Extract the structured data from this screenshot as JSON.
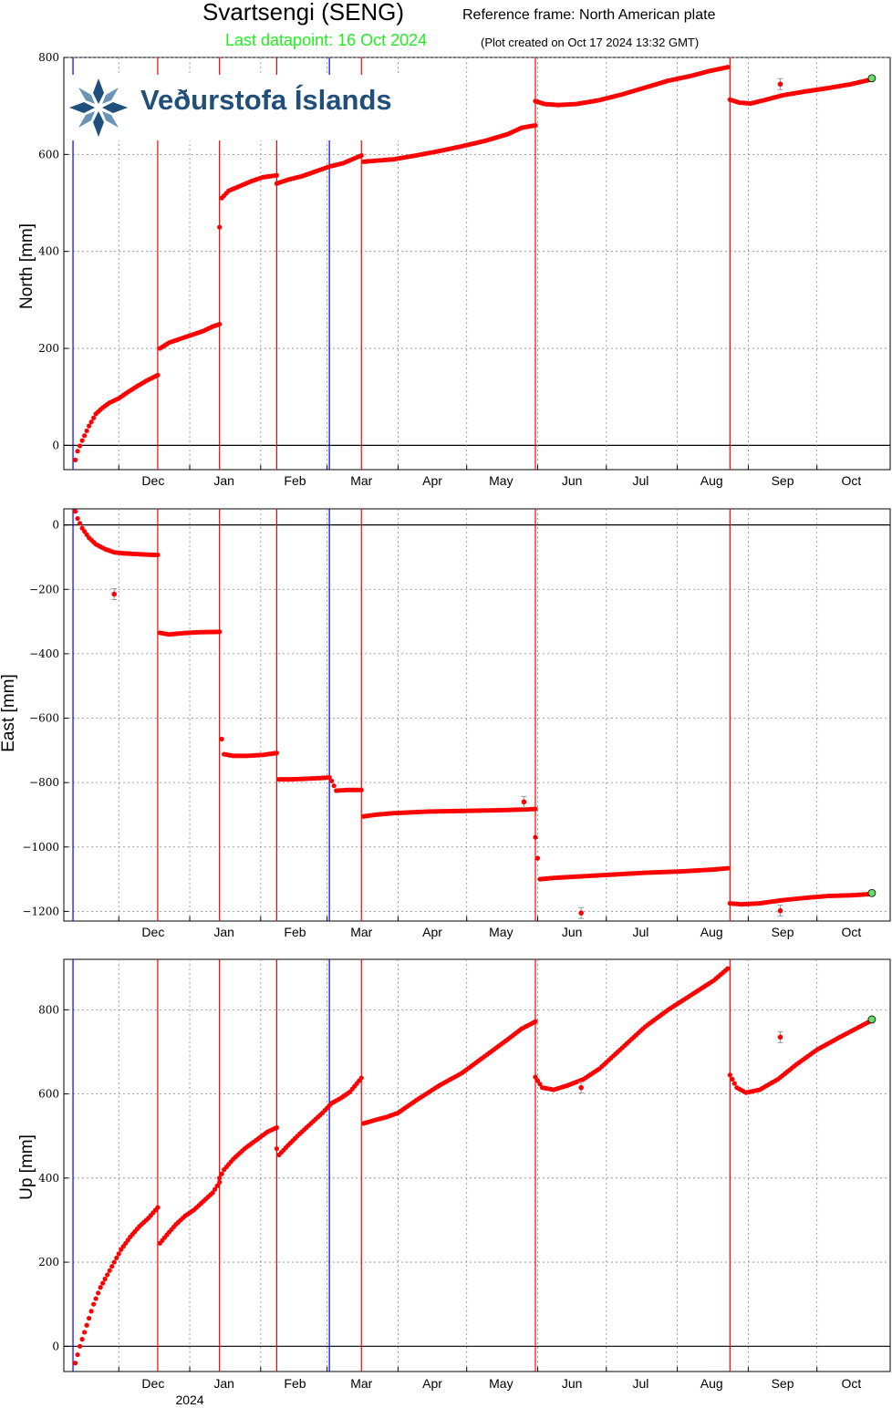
{
  "header": {
    "station": "Svartsengi (SENG)",
    "reference": "Reference frame: North American plate",
    "last_datapoint": "Last datapoint: 16 Oct 2024",
    "created": "(Plot created on Oct 17 2024 13:32 GMT)"
  },
  "logo": {
    "text": "Veðurstofa Íslands",
    "icon": "imo-snowflake-logo-icon"
  },
  "colors": {
    "data": "#ff0000",
    "event_red": "#ff0000",
    "event_blue": "#0000ff",
    "last_point": "#66dd66",
    "title_green": "#22ee22"
  },
  "year_label": "2024",
  "chart_data": [
    {
      "type": "scatter",
      "ylabel": "North [mm]",
      "ylim": [
        -50,
        800
      ],
      "yticks": [
        0,
        200,
        400,
        600,
        800
      ],
      "xlim_days": [
        -24,
        337
      ],
      "month_ticks": [
        {
          "label": "Dec",
          "day": 0
        },
        {
          "label": "Jan",
          "day": 31
        },
        {
          "label": "Feb",
          "day": 62
        },
        {
          "label": "Mar",
          "day": 91
        },
        {
          "label": "Apr",
          "day": 122
        },
        {
          "label": "May",
          "day": 152
        },
        {
          "label": "Jun",
          "day": 183
        },
        {
          "label": "Jul",
          "day": 213
        },
        {
          "label": "Aug",
          "day": 244
        },
        {
          "label": "Sep",
          "day": 275
        },
        {
          "label": "Oct",
          "day": 305
        }
      ],
      "events": [
        {
          "day": -20,
          "color": "blue"
        },
        {
          "day": 17,
          "color": "red"
        },
        {
          "day": 44,
          "color": "red"
        },
        {
          "day": 69,
          "color": "red"
        },
        {
          "day": 92,
          "color": "blue"
        },
        {
          "day": 106,
          "color": "red"
        },
        {
          "day": 182,
          "color": "red"
        },
        {
          "day": 267,
          "color": "red"
        }
      ],
      "segments": [
        {
          "x": [
            -19,
            -18,
            -16,
            -13,
            -10,
            -7,
            -4,
            0,
            4,
            8,
            12,
            17
          ],
          "y": [
            -30,
            -12,
            10,
            40,
            65,
            78,
            88,
            97,
            110,
            122,
            133,
            145
          ]
        },
        {
          "x": [
            18,
            22,
            27,
            32,
            37,
            41,
            44
          ],
          "y": [
            200,
            212,
            220,
            228,
            236,
            245,
            250
          ]
        },
        {
          "x": [
            44,
            45,
            48,
            53,
            58,
            63,
            69
          ],
          "y": [
            450,
            510,
            525,
            535,
            545,
            553,
            557
          ]
        },
        {
          "x": [
            69,
            74,
            80,
            86,
            92,
            98,
            102,
            106
          ],
          "y": [
            540,
            548,
            555,
            565,
            575,
            582,
            590,
            598
          ]
        },
        {
          "x": [
            107,
            112,
            120,
            130,
            140,
            150,
            160,
            170,
            176,
            182
          ],
          "y": [
            585,
            587,
            590,
            598,
            607,
            617,
            628,
            642,
            655,
            660
          ]
        },
        {
          "x": [
            182,
            186,
            192,
            200,
            210,
            220,
            230,
            240,
            250,
            258,
            266
          ],
          "y": [
            710,
            704,
            702,
            704,
            712,
            724,
            738,
            752,
            762,
            772,
            780
          ]
        },
        {
          "x": [
            267,
            271,
            276,
            282,
            290,
            300,
            310,
            320,
            329
          ],
          "y": [
            713,
            707,
            705,
            712,
            722,
            730,
            737,
            745,
            755
          ]
        }
      ],
      "outliers": [
        {
          "x": 289,
          "y": 745
        }
      ],
      "last_point": {
        "x": 329,
        "y": 757
      }
    },
    {
      "type": "scatter",
      "ylabel": "East [mm]",
      "ylim": [
        -1230,
        50
      ],
      "yticks": [
        0,
        -200,
        -400,
        -600,
        -800,
        -1000,
        -1200
      ],
      "xlim_days": [
        -24,
        337
      ],
      "month_ticks": [
        {
          "label": "Dec",
          "day": 0
        },
        {
          "label": "Jan",
          "day": 31
        },
        {
          "label": "Feb",
          "day": 62
        },
        {
          "label": "Mar",
          "day": 91
        },
        {
          "label": "Apr",
          "day": 122
        },
        {
          "label": "May",
          "day": 152
        },
        {
          "label": "Jun",
          "day": 183
        },
        {
          "label": "Jul",
          "day": 213
        },
        {
          "label": "Aug",
          "day": 244
        },
        {
          "label": "Sep",
          "day": 275
        },
        {
          "label": "Oct",
          "day": 305
        }
      ],
      "events": [
        {
          "day": -20,
          "color": "blue"
        },
        {
          "day": 17,
          "color": "red"
        },
        {
          "day": 44,
          "color": "red"
        },
        {
          "day": 69,
          "color": "red"
        },
        {
          "day": 92,
          "color": "blue"
        },
        {
          "day": 106,
          "color": "red"
        },
        {
          "day": 182,
          "color": "red"
        },
        {
          "day": 267,
          "color": "red"
        }
      ],
      "segments": [
        {
          "x": [
            -19,
            -18,
            -16,
            -13,
            -10,
            -6,
            -2,
            2,
            7,
            12,
            17
          ],
          "y": [
            42,
            20,
            -10,
            -40,
            -60,
            -75,
            -85,
            -88,
            -90,
            -92,
            -93
          ]
        },
        {
          "x": [
            18,
            22,
            28,
            35,
            44
          ],
          "y": [
            -335,
            -340,
            -336,
            -333,
            -332
          ]
        },
        {
          "x": [
            45,
            46,
            50,
            56,
            63,
            69
          ],
          "y": [
            -665,
            -712,
            -717,
            -717,
            -714,
            -708
          ]
        },
        {
          "x": [
            70,
            75,
            82,
            88,
            92
          ],
          "y": [
            -790,
            -790,
            -788,
            -786,
            -784
          ]
        },
        {
          "x": [
            93,
            95,
            100,
            106
          ],
          "y": [
            -795,
            -825,
            -823,
            -823
          ]
        },
        {
          "x": [
            107,
            112,
            120,
            135,
            150,
            165,
            175,
            182
          ],
          "y": [
            -905,
            -900,
            -895,
            -890,
            -888,
            -886,
            -884,
            -882
          ]
        },
        {
          "x": [
            182,
            184,
            190,
            200,
            215,
            230,
            245,
            260,
            266
          ],
          "y": [
            -970,
            -1100,
            -1096,
            -1092,
            -1086,
            -1080,
            -1076,
            -1070,
            -1066
          ]
        },
        {
          "x": [
            267,
            272,
            280,
            290,
            300,
            310,
            320,
            329
          ],
          "y": [
            -1175,
            -1178,
            -1175,
            -1165,
            -1158,
            -1152,
            -1150,
            -1146
          ]
        }
      ],
      "outliers": [
        {
          "x": -2,
          "y": -215
        },
        {
          "x": 177,
          "y": -860
        },
        {
          "x": 202,
          "y": -1205
        },
        {
          "x": 289,
          "y": -1198
        }
      ],
      "last_point": {
        "x": 329,
        "y": -1143
      }
    },
    {
      "type": "scatter",
      "ylabel": "Up [mm]",
      "ylim": [
        -60,
        920
      ],
      "yticks": [
        0,
        200,
        400,
        600,
        800
      ],
      "xlim_days": [
        -24,
        337
      ],
      "month_ticks": [
        {
          "label": "Dec",
          "day": 0
        },
        {
          "label": "Jan",
          "day": 31
        },
        {
          "label": "Feb",
          "day": 62
        },
        {
          "label": "Mar",
          "day": 91
        },
        {
          "label": "Apr",
          "day": 122
        },
        {
          "label": "May",
          "day": 152
        },
        {
          "label": "Jun",
          "day": 183
        },
        {
          "label": "Jul",
          "day": 213
        },
        {
          "label": "Aug",
          "day": 244
        },
        {
          "label": "Sep",
          "day": 275
        },
        {
          "label": "Oct",
          "day": 305
        }
      ],
      "events": [
        {
          "day": -20,
          "color": "blue"
        },
        {
          "day": 17,
          "color": "red"
        },
        {
          "day": 44,
          "color": "red"
        },
        {
          "day": 69,
          "color": "red"
        },
        {
          "day": 92,
          "color": "blue"
        },
        {
          "day": 106,
          "color": "red"
        },
        {
          "day": 182,
          "color": "red"
        },
        {
          "day": 267,
          "color": "red"
        }
      ],
      "segments": [
        {
          "x": [
            -19,
            -17,
            -14,
            -11,
            -8,
            -5,
            -2,
            1,
            5,
            9,
            13,
            17
          ],
          "y": [
            -40,
            0,
            50,
            100,
            140,
            170,
            200,
            230,
            260,
            285,
            305,
            330
          ]
        },
        {
          "x": [
            18,
            21,
            25,
            29,
            33,
            37,
            41,
            44
          ],
          "y": [
            245,
            265,
            290,
            310,
            325,
            345,
            365,
            390
          ]
        },
        {
          "x": [
            44,
            46,
            50,
            55,
            60,
            65,
            69
          ],
          "y": [
            400,
            420,
            445,
            470,
            490,
            510,
            520
          ]
        },
        {
          "x": [
            69,
            70,
            74,
            79,
            84,
            89,
            93,
            97,
            101,
            106
          ],
          "y": [
            470,
            455,
            478,
            505,
            530,
            555,
            578,
            590,
            605,
            638
          ]
        },
        {
          "x": [
            107,
            112,
            117,
            122,
            130,
            140,
            150,
            160,
            170,
            176,
            182
          ],
          "y": [
            530,
            538,
            545,
            555,
            585,
            620,
            650,
            690,
            730,
            755,
            772
          ]
        },
        {
          "x": [
            182,
            185,
            190,
            196,
            203,
            210,
            220,
            230,
            240,
            250,
            260,
            266
          ],
          "y": [
            640,
            615,
            610,
            620,
            635,
            660,
            710,
            760,
            800,
            835,
            870,
            898
          ]
        },
        {
          "x": [
            267,
            270,
            274,
            280,
            288,
            296,
            305,
            315,
            322,
            329
          ],
          "y": [
            645,
            615,
            603,
            610,
            635,
            670,
            705,
            735,
            755,
            775
          ]
        }
      ],
      "outliers": [
        {
          "x": 202,
          "y": 615
        },
        {
          "x": 289,
          "y": 735
        }
      ],
      "last_point": {
        "x": 329,
        "y": 777
      }
    }
  ]
}
